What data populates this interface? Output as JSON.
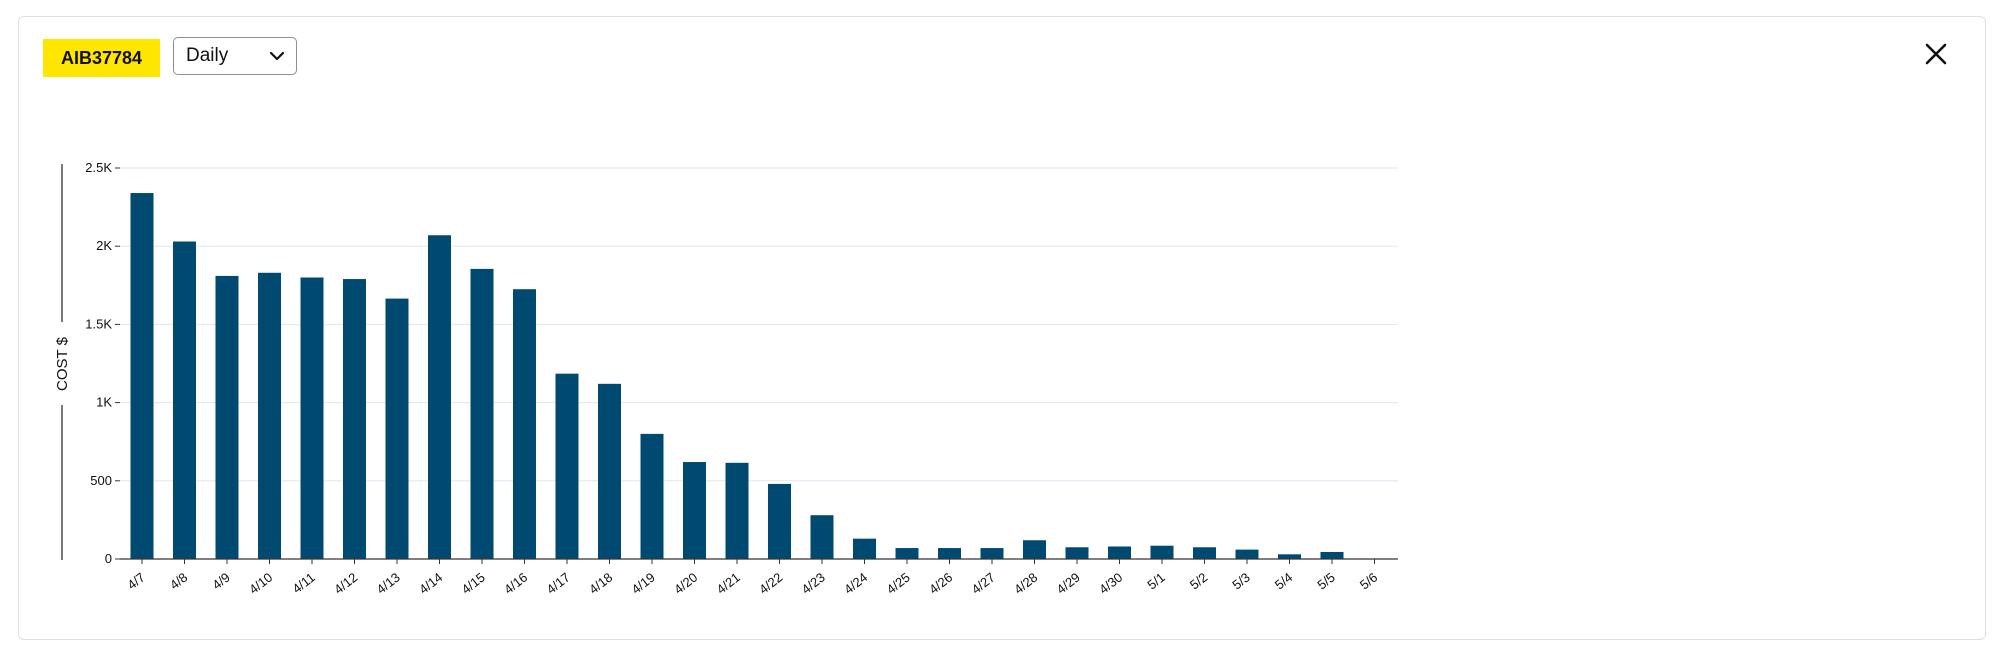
{
  "header": {
    "badge_label": "AIB37784",
    "period_select": {
      "selected": "Daily"
    }
  },
  "icons": {
    "close": "close-icon",
    "dropdown": "chevron-down-icon"
  },
  "colors": {
    "badge": "#ffe600",
    "bar": "#004a72",
    "grid": "#dfe6f3"
  },
  "chart_data": {
    "type": "bar",
    "ylabel": "COST $",
    "ylim": [
      0,
      2500
    ],
    "yticks": [
      {
        "value": 0,
        "label": "0"
      },
      {
        "value": 500,
        "label": "500"
      },
      {
        "value": 1000,
        "label": "1K"
      },
      {
        "value": 1500,
        "label": "1.5K"
      },
      {
        "value": 2000,
        "label": "2K"
      },
      {
        "value": 2500,
        "label": "2.5K"
      }
    ],
    "grid": true,
    "categories": [
      "4/7",
      "4/8",
      "4/9",
      "4/10",
      "4/11",
      "4/12",
      "4/13",
      "4/14",
      "4/15",
      "4/16",
      "4/17",
      "4/18",
      "4/19",
      "4/20",
      "4/21",
      "4/22",
      "4/23",
      "4/24",
      "4/25",
      "4/26",
      "4/27",
      "4/28",
      "4/29",
      "4/30",
      "5/1",
      "5/2",
      "5/3",
      "5/4",
      "5/5",
      "5/6"
    ],
    "values": [
      2340,
      2030,
      1810,
      1830,
      1800,
      1790,
      1665,
      2070,
      1855,
      1725,
      1185,
      1120,
      800,
      620,
      615,
      480,
      280,
      130,
      70,
      70,
      70,
      120,
      75,
      80,
      85,
      75,
      60,
      30,
      45,
      0
    ]
  }
}
